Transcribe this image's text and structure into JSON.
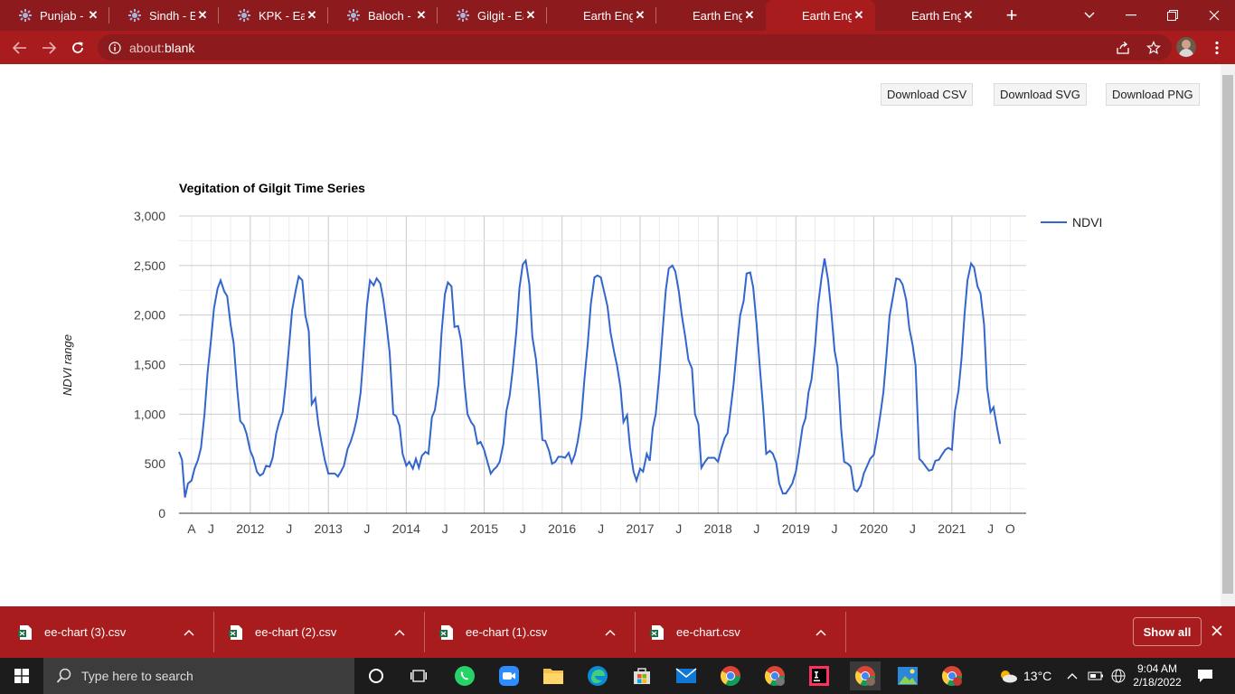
{
  "browser": {
    "tabs": [
      {
        "title": "Punjab - Ea",
        "kind": "ee"
      },
      {
        "title": "Sindh - Ear",
        "kind": "ee"
      },
      {
        "title": "KPK - Earth",
        "kind": "ee"
      },
      {
        "title": "Baloch - Ea",
        "kind": "ee"
      },
      {
        "title": "Gilgit - Ear",
        "kind": "ee"
      },
      {
        "title": "Earth Engin",
        "kind": "blank"
      },
      {
        "title": "Earth Engin",
        "kind": "blank"
      },
      {
        "title": "Earth Engin",
        "kind": "blank",
        "active": true
      },
      {
        "title": "Earth Engin",
        "kind": "blank"
      }
    ],
    "close_glyph": "✕",
    "new_tab_glyph": "+",
    "url_scheme": "about:",
    "url_path": "blank",
    "accent": "#a91c1e"
  },
  "downloads_buttons": {
    "csv": "Download CSV",
    "svg": "Download SVG",
    "png": "Download PNG"
  },
  "chart_data": {
    "type": "line",
    "title": "Vegitation of Gilgit Time Series",
    "ylabel": "NDVI range",
    "xlabel": "",
    "ylim": [
      0,
      3000
    ],
    "yticks": [
      "0",
      "500",
      "1,000",
      "1,500",
      "2,000",
      "2,500",
      "3,000"
    ],
    "xticks": [
      "A",
      "J",
      "2012",
      "J",
      "2013",
      "J",
      "2014",
      "J",
      "2015",
      "J",
      "2016",
      "J",
      "2017",
      "J",
      "2018",
      "J",
      "2019",
      "J",
      "2020",
      "J",
      "2021",
      "J",
      "O"
    ],
    "xtick_dates": [
      "2011-04-01",
      "2011-07-01",
      "2012-01-01",
      "2012-07-01",
      "2013-01-01",
      "2013-07-01",
      "2014-01-01",
      "2014-07-01",
      "2015-01-01",
      "2015-07-01",
      "2016-01-01",
      "2016-07-01",
      "2017-01-01",
      "2017-07-01",
      "2018-01-01",
      "2018-07-01",
      "2019-01-01",
      "2019-07-01",
      "2020-01-01",
      "2020-07-01",
      "2021-01-01",
      "2021-07-01",
      "2021-10-01"
    ],
    "xrange": [
      "2011-02-01",
      "2021-12-15"
    ],
    "legend_position": "right",
    "grid": true,
    "series": [
      {
        "name": "NDVI",
        "color": "#3366cc",
        "points": [
          [
            "2011-02-01",
            620
          ],
          [
            "2011-02-15",
            540
          ],
          [
            "2011-03-01",
            160
          ],
          [
            "2011-03-15",
            300
          ],
          [
            "2011-04-01",
            330
          ],
          [
            "2011-04-15",
            450
          ],
          [
            "2011-05-01",
            540
          ],
          [
            "2011-05-15",
            660
          ],
          [
            "2011-06-01",
            1010
          ],
          [
            "2011-06-15",
            1420
          ],
          [
            "2011-07-01",
            1750
          ],
          [
            "2011-07-15",
            2070
          ],
          [
            "2011-08-01",
            2270
          ],
          [
            "2011-08-15",
            2350
          ],
          [
            "2011-09-01",
            2240
          ],
          [
            "2011-09-15",
            2190
          ],
          [
            "2011-10-01",
            1900
          ],
          [
            "2011-10-15",
            1720
          ],
          [
            "2011-11-01",
            1250
          ],
          [
            "2011-11-15",
            930
          ],
          [
            "2011-12-01",
            890
          ],
          [
            "2011-12-15",
            800
          ],
          [
            "2012-01-01",
            630
          ],
          [
            "2012-01-15",
            560
          ],
          [
            "2012-02-01",
            420
          ],
          [
            "2012-02-15",
            380
          ],
          [
            "2012-03-01",
            400
          ],
          [
            "2012-03-15",
            480
          ],
          [
            "2012-04-01",
            470
          ],
          [
            "2012-04-15",
            560
          ],
          [
            "2012-05-01",
            800
          ],
          [
            "2012-05-15",
            920
          ],
          [
            "2012-06-01",
            1020
          ],
          [
            "2012-06-15",
            1300
          ],
          [
            "2012-07-01",
            1700
          ],
          [
            "2012-07-15",
            2050
          ],
          [
            "2012-08-01",
            2250
          ],
          [
            "2012-08-15",
            2390
          ],
          [
            "2012-09-01",
            2350
          ],
          [
            "2012-09-15",
            2000
          ],
          [
            "2012-10-01",
            1840
          ],
          [
            "2012-10-15",
            1100
          ],
          [
            "2012-11-01",
            1160
          ],
          [
            "2012-11-15",
            900
          ],
          [
            "2012-12-01",
            700
          ],
          [
            "2012-12-15",
            540
          ],
          [
            "2013-01-01",
            400
          ],
          [
            "2013-01-15",
            400
          ],
          [
            "2013-02-01",
            400
          ],
          [
            "2013-02-15",
            370
          ],
          [
            "2013-03-01",
            420
          ],
          [
            "2013-03-15",
            480
          ],
          [
            "2013-04-01",
            650
          ],
          [
            "2013-04-15",
            720
          ],
          [
            "2013-05-01",
            830
          ],
          [
            "2013-05-15",
            960
          ],
          [
            "2013-06-01",
            1220
          ],
          [
            "2013-06-15",
            1620
          ],
          [
            "2013-07-01",
            2100
          ],
          [
            "2013-07-15",
            2350
          ],
          [
            "2013-08-01",
            2300
          ],
          [
            "2013-08-15",
            2370
          ],
          [
            "2013-09-01",
            2320
          ],
          [
            "2013-09-15",
            2160
          ],
          [
            "2013-10-01",
            1900
          ],
          [
            "2013-10-15",
            1620
          ],
          [
            "2013-11-01",
            1000
          ],
          [
            "2013-11-15",
            980
          ],
          [
            "2013-12-01",
            880
          ],
          [
            "2013-12-15",
            600
          ],
          [
            "2014-01-01",
            480
          ],
          [
            "2014-01-15",
            520
          ],
          [
            "2014-02-01",
            450
          ],
          [
            "2014-02-15",
            550
          ],
          [
            "2014-03-01",
            460
          ],
          [
            "2014-03-15",
            580
          ],
          [
            "2014-04-01",
            620
          ],
          [
            "2014-04-15",
            600
          ],
          [
            "2014-05-01",
            970
          ],
          [
            "2014-05-15",
            1040
          ],
          [
            "2014-06-01",
            1300
          ],
          [
            "2014-06-15",
            1810
          ],
          [
            "2014-07-01",
            2210
          ],
          [
            "2014-07-15",
            2330
          ],
          [
            "2014-08-01",
            2290
          ],
          [
            "2014-08-15",
            1880
          ],
          [
            "2014-09-01",
            1890
          ],
          [
            "2014-09-15",
            1740
          ],
          [
            "2014-10-01",
            1300
          ],
          [
            "2014-10-15",
            1000
          ],
          [
            "2014-11-01",
            920
          ],
          [
            "2014-11-15",
            880
          ],
          [
            "2014-12-01",
            700
          ],
          [
            "2014-12-15",
            720
          ],
          [
            "2015-01-01",
            640
          ],
          [
            "2015-01-15",
            530
          ],
          [
            "2015-02-01",
            400
          ],
          [
            "2015-02-15",
            440
          ],
          [
            "2015-03-01",
            470
          ],
          [
            "2015-03-15",
            520
          ],
          [
            "2015-04-01",
            700
          ],
          [
            "2015-04-15",
            1030
          ],
          [
            "2015-05-01",
            1190
          ],
          [
            "2015-05-15",
            1450
          ],
          [
            "2015-06-01",
            1830
          ],
          [
            "2015-06-15",
            2270
          ],
          [
            "2015-07-01",
            2510
          ],
          [
            "2015-07-15",
            2550
          ],
          [
            "2015-08-01",
            2310
          ],
          [
            "2015-08-15",
            1780
          ],
          [
            "2015-09-01",
            1550
          ],
          [
            "2015-09-15",
            1210
          ],
          [
            "2015-10-01",
            740
          ],
          [
            "2015-10-15",
            730
          ],
          [
            "2015-11-01",
            630
          ],
          [
            "2015-11-15",
            500
          ],
          [
            "2015-12-01",
            520
          ],
          [
            "2015-12-15",
            570
          ],
          [
            "2016-01-01",
            570
          ],
          [
            "2016-01-15",
            560
          ],
          [
            "2016-02-01",
            610
          ],
          [
            "2016-02-15",
            510
          ],
          [
            "2016-03-01",
            590
          ],
          [
            "2016-03-15",
            730
          ],
          [
            "2016-04-01",
            970
          ],
          [
            "2016-04-15",
            1350
          ],
          [
            "2016-05-01",
            1720
          ],
          [
            "2016-05-15",
            2110
          ],
          [
            "2016-06-01",
            2380
          ],
          [
            "2016-06-15",
            2400
          ],
          [
            "2016-07-01",
            2380
          ],
          [
            "2016-07-15",
            2250
          ],
          [
            "2016-08-01",
            2090
          ],
          [
            "2016-08-15",
            1830
          ],
          [
            "2016-09-01",
            1630
          ],
          [
            "2016-09-15",
            1490
          ],
          [
            "2016-10-01",
            1270
          ],
          [
            "2016-10-15",
            920
          ],
          [
            "2016-11-01",
            990
          ],
          [
            "2016-11-15",
            660
          ],
          [
            "2016-12-01",
            420
          ],
          [
            "2016-12-15",
            330
          ],
          [
            "2017-01-01",
            450
          ],
          [
            "2017-01-15",
            420
          ],
          [
            "2017-02-01",
            600
          ],
          [
            "2017-02-15",
            530
          ],
          [
            "2017-03-01",
            860
          ],
          [
            "2017-03-15",
            1000
          ],
          [
            "2017-04-01",
            1400
          ],
          [
            "2017-04-15",
            1800
          ],
          [
            "2017-05-01",
            2250
          ],
          [
            "2017-05-15",
            2470
          ],
          [
            "2017-06-01",
            2500
          ],
          [
            "2017-06-15",
            2440
          ],
          [
            "2017-07-01",
            2240
          ],
          [
            "2017-07-15",
            2000
          ],
          [
            "2017-08-01",
            1770
          ],
          [
            "2017-08-15",
            1550
          ],
          [
            "2017-09-01",
            1460
          ],
          [
            "2017-09-15",
            1000
          ],
          [
            "2017-10-01",
            900
          ],
          [
            "2017-10-15",
            460
          ],
          [
            "2017-11-01",
            520
          ],
          [
            "2017-11-15",
            560
          ],
          [
            "2017-12-01",
            560
          ],
          [
            "2017-12-15",
            560
          ],
          [
            "2018-01-01",
            520
          ],
          [
            "2018-01-15",
            640
          ],
          [
            "2018-02-01",
            760
          ],
          [
            "2018-02-15",
            810
          ],
          [
            "2018-03-01",
            1050
          ],
          [
            "2018-03-15",
            1300
          ],
          [
            "2018-04-01",
            1700
          ],
          [
            "2018-04-15",
            2000
          ],
          [
            "2018-05-01",
            2140
          ],
          [
            "2018-05-15",
            2420
          ],
          [
            "2018-06-01",
            2430
          ],
          [
            "2018-06-15",
            2280
          ],
          [
            "2018-07-01",
            1900
          ],
          [
            "2018-07-15",
            1500
          ],
          [
            "2018-08-01",
            1050
          ],
          [
            "2018-08-15",
            600
          ],
          [
            "2018-09-01",
            630
          ],
          [
            "2018-09-15",
            600
          ],
          [
            "2018-10-01",
            510
          ],
          [
            "2018-10-15",
            300
          ],
          [
            "2018-11-01",
            200
          ],
          [
            "2018-11-15",
            200
          ],
          [
            "2018-12-01",
            250
          ],
          [
            "2018-12-15",
            300
          ],
          [
            "2019-01-01",
            420
          ],
          [
            "2019-01-15",
            610
          ],
          [
            "2019-02-01",
            870
          ],
          [
            "2019-02-15",
            960
          ],
          [
            "2019-03-01",
            1220
          ],
          [
            "2019-03-15",
            1350
          ],
          [
            "2019-04-01",
            1700
          ],
          [
            "2019-04-15",
            2100
          ],
          [
            "2019-05-01",
            2380
          ],
          [
            "2019-05-15",
            2570
          ],
          [
            "2019-06-01",
            2350
          ],
          [
            "2019-06-15",
            2050
          ],
          [
            "2019-07-01",
            1640
          ],
          [
            "2019-07-15",
            1480
          ],
          [
            "2019-08-01",
            850
          ],
          [
            "2019-08-15",
            520
          ],
          [
            "2019-09-01",
            500
          ],
          [
            "2019-09-15",
            470
          ],
          [
            "2019-10-01",
            240
          ],
          [
            "2019-10-15",
            220
          ],
          [
            "2019-11-01",
            280
          ],
          [
            "2019-11-15",
            400
          ],
          [
            "2019-12-01",
            480
          ],
          [
            "2019-12-15",
            550
          ],
          [
            "2020-01-01",
            590
          ],
          [
            "2020-01-15",
            760
          ],
          [
            "2020-02-01",
            1000
          ],
          [
            "2020-02-15",
            1220
          ],
          [
            "2020-03-01",
            1600
          ],
          [
            "2020-03-15",
            1990
          ],
          [
            "2020-04-01",
            2200
          ],
          [
            "2020-04-15",
            2370
          ],
          [
            "2020-05-01",
            2360
          ],
          [
            "2020-05-15",
            2310
          ],
          [
            "2020-06-01",
            2150
          ],
          [
            "2020-06-15",
            1870
          ],
          [
            "2020-07-01",
            1700
          ],
          [
            "2020-07-15",
            1490
          ],
          [
            "2020-08-01",
            550
          ],
          [
            "2020-08-15",
            520
          ],
          [
            "2020-09-01",
            470
          ],
          [
            "2020-09-15",
            430
          ],
          [
            "2020-10-01",
            440
          ],
          [
            "2020-10-15",
            530
          ],
          [
            "2020-11-01",
            540
          ],
          [
            "2020-11-15",
            590
          ],
          [
            "2020-12-01",
            640
          ],
          [
            "2020-12-15",
            660
          ],
          [
            "2021-01-01",
            640
          ],
          [
            "2021-01-15",
            1030
          ],
          [
            "2021-02-01",
            1240
          ],
          [
            "2021-02-15",
            1560
          ],
          [
            "2021-03-01",
            2000
          ],
          [
            "2021-03-15",
            2350
          ],
          [
            "2021-04-01",
            2520
          ],
          [
            "2021-04-15",
            2480
          ],
          [
            "2021-05-01",
            2290
          ],
          [
            "2021-05-15",
            2220
          ],
          [
            "2021-06-01",
            1900
          ],
          [
            "2021-06-15",
            1270
          ],
          [
            "2021-07-01",
            1020
          ],
          [
            "2021-07-15",
            1070
          ],
          [
            "2021-08-01",
            860
          ],
          [
            "2021-08-15",
            700
          ]
        ]
      }
    ]
  },
  "downloads_shelf": {
    "items": [
      "ee-chart (3).csv",
      "ee-chart (2).csv",
      "ee-chart (1).csv",
      "ee-chart.csv"
    ],
    "show_all": "Show all"
  },
  "taskbar": {
    "search_placeholder": "Type here to search",
    "weather": "13°C",
    "time": "9:04 AM",
    "date": "2/18/2022"
  }
}
